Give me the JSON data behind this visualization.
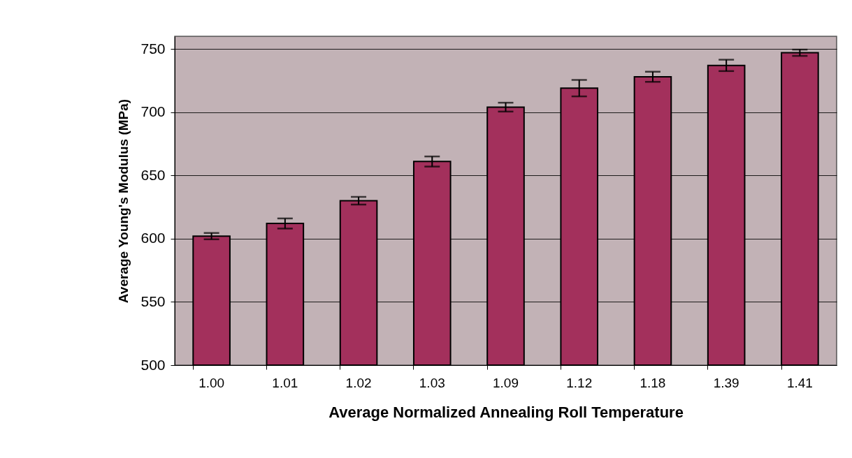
{
  "chart_data": {
    "type": "bar",
    "xlabel": "Average Normalized Annealing Roll Temperature",
    "ylabel": "Average Young's Modulus (MPa)",
    "categories": [
      "1.00",
      "1.01",
      "1.02",
      "1.03",
      "1.09",
      "1.12",
      "1.18",
      "1.39",
      "1.41"
    ],
    "values": [
      602,
      612,
      630,
      661,
      704,
      719,
      728,
      737,
      747
    ],
    "errors": [
      2.5,
      4,
      3,
      4,
      3.5,
      6.5,
      4,
      4.5,
      2.5
    ],
    "color": "#a3305c",
    "ylim": [
      500,
      760
    ],
    "yticks": [
      500,
      550,
      600,
      650,
      700,
      750
    ],
    "grid": "y"
  }
}
